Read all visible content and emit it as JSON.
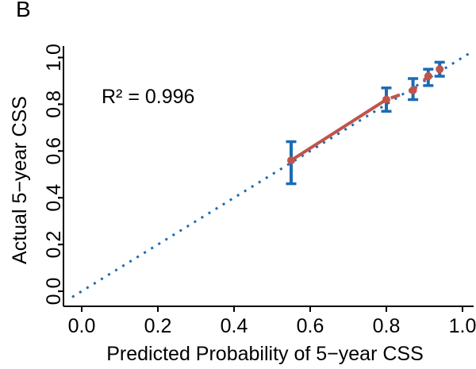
{
  "figure": {
    "panel_label": "B"
  },
  "chart_data": {
    "type": "scatter",
    "subtype": "calibration-curve-with-error-bars",
    "title": "",
    "xlabel": "Predicted Probability of 5−year CSS",
    "ylabel": "Actual 5−year CSS",
    "annotation": "R² = 0.996",
    "x_axis": {
      "tick_values": [
        0,
        0.2,
        0.4,
        0.6,
        0.8,
        1.0
      ],
      "tick_labels": [
        "0.0",
        "0.2",
        "0.4",
        "0.6",
        "0.8",
        "1.0"
      ],
      "range": [
        -0.05,
        1.04
      ]
    },
    "y_axis": {
      "tick_values": [
        0,
        0.2,
        0.4,
        0.6,
        0.8,
        1.0
      ],
      "tick_labels": [
        "0.0",
        "0.2",
        "0.4",
        "0.6",
        "0.8",
        "1.0"
      ],
      "range": [
        -0.06,
        1.05
      ]
    },
    "identity_line": {
      "style": "dotted",
      "from": -0.025,
      "to": 1.025
    },
    "points": {
      "x": [
        0.55,
        0.8,
        0.87,
        0.91,
        0.94
      ],
      "y": [
        0.56,
        0.82,
        0.86,
        0.92,
        0.95
      ],
      "ci_low": [
        0.46,
        0.77,
        0.82,
        0.88,
        0.92
      ],
      "ci_high": [
        0.64,
        0.87,
        0.91,
        0.95,
        0.98
      ]
    },
    "line_segments": {
      "first": "solid",
      "rest": "dashed"
    },
    "legend": {
      "visible": false
    },
    "grid": false,
    "colors": {
      "identity": "#1b6cb3",
      "error_bars": "#1b6cb3",
      "line": "#c0544a",
      "points": "#c0544a",
      "axis": "#000000",
      "text": "#000000",
      "background": "#ffffff"
    }
  }
}
